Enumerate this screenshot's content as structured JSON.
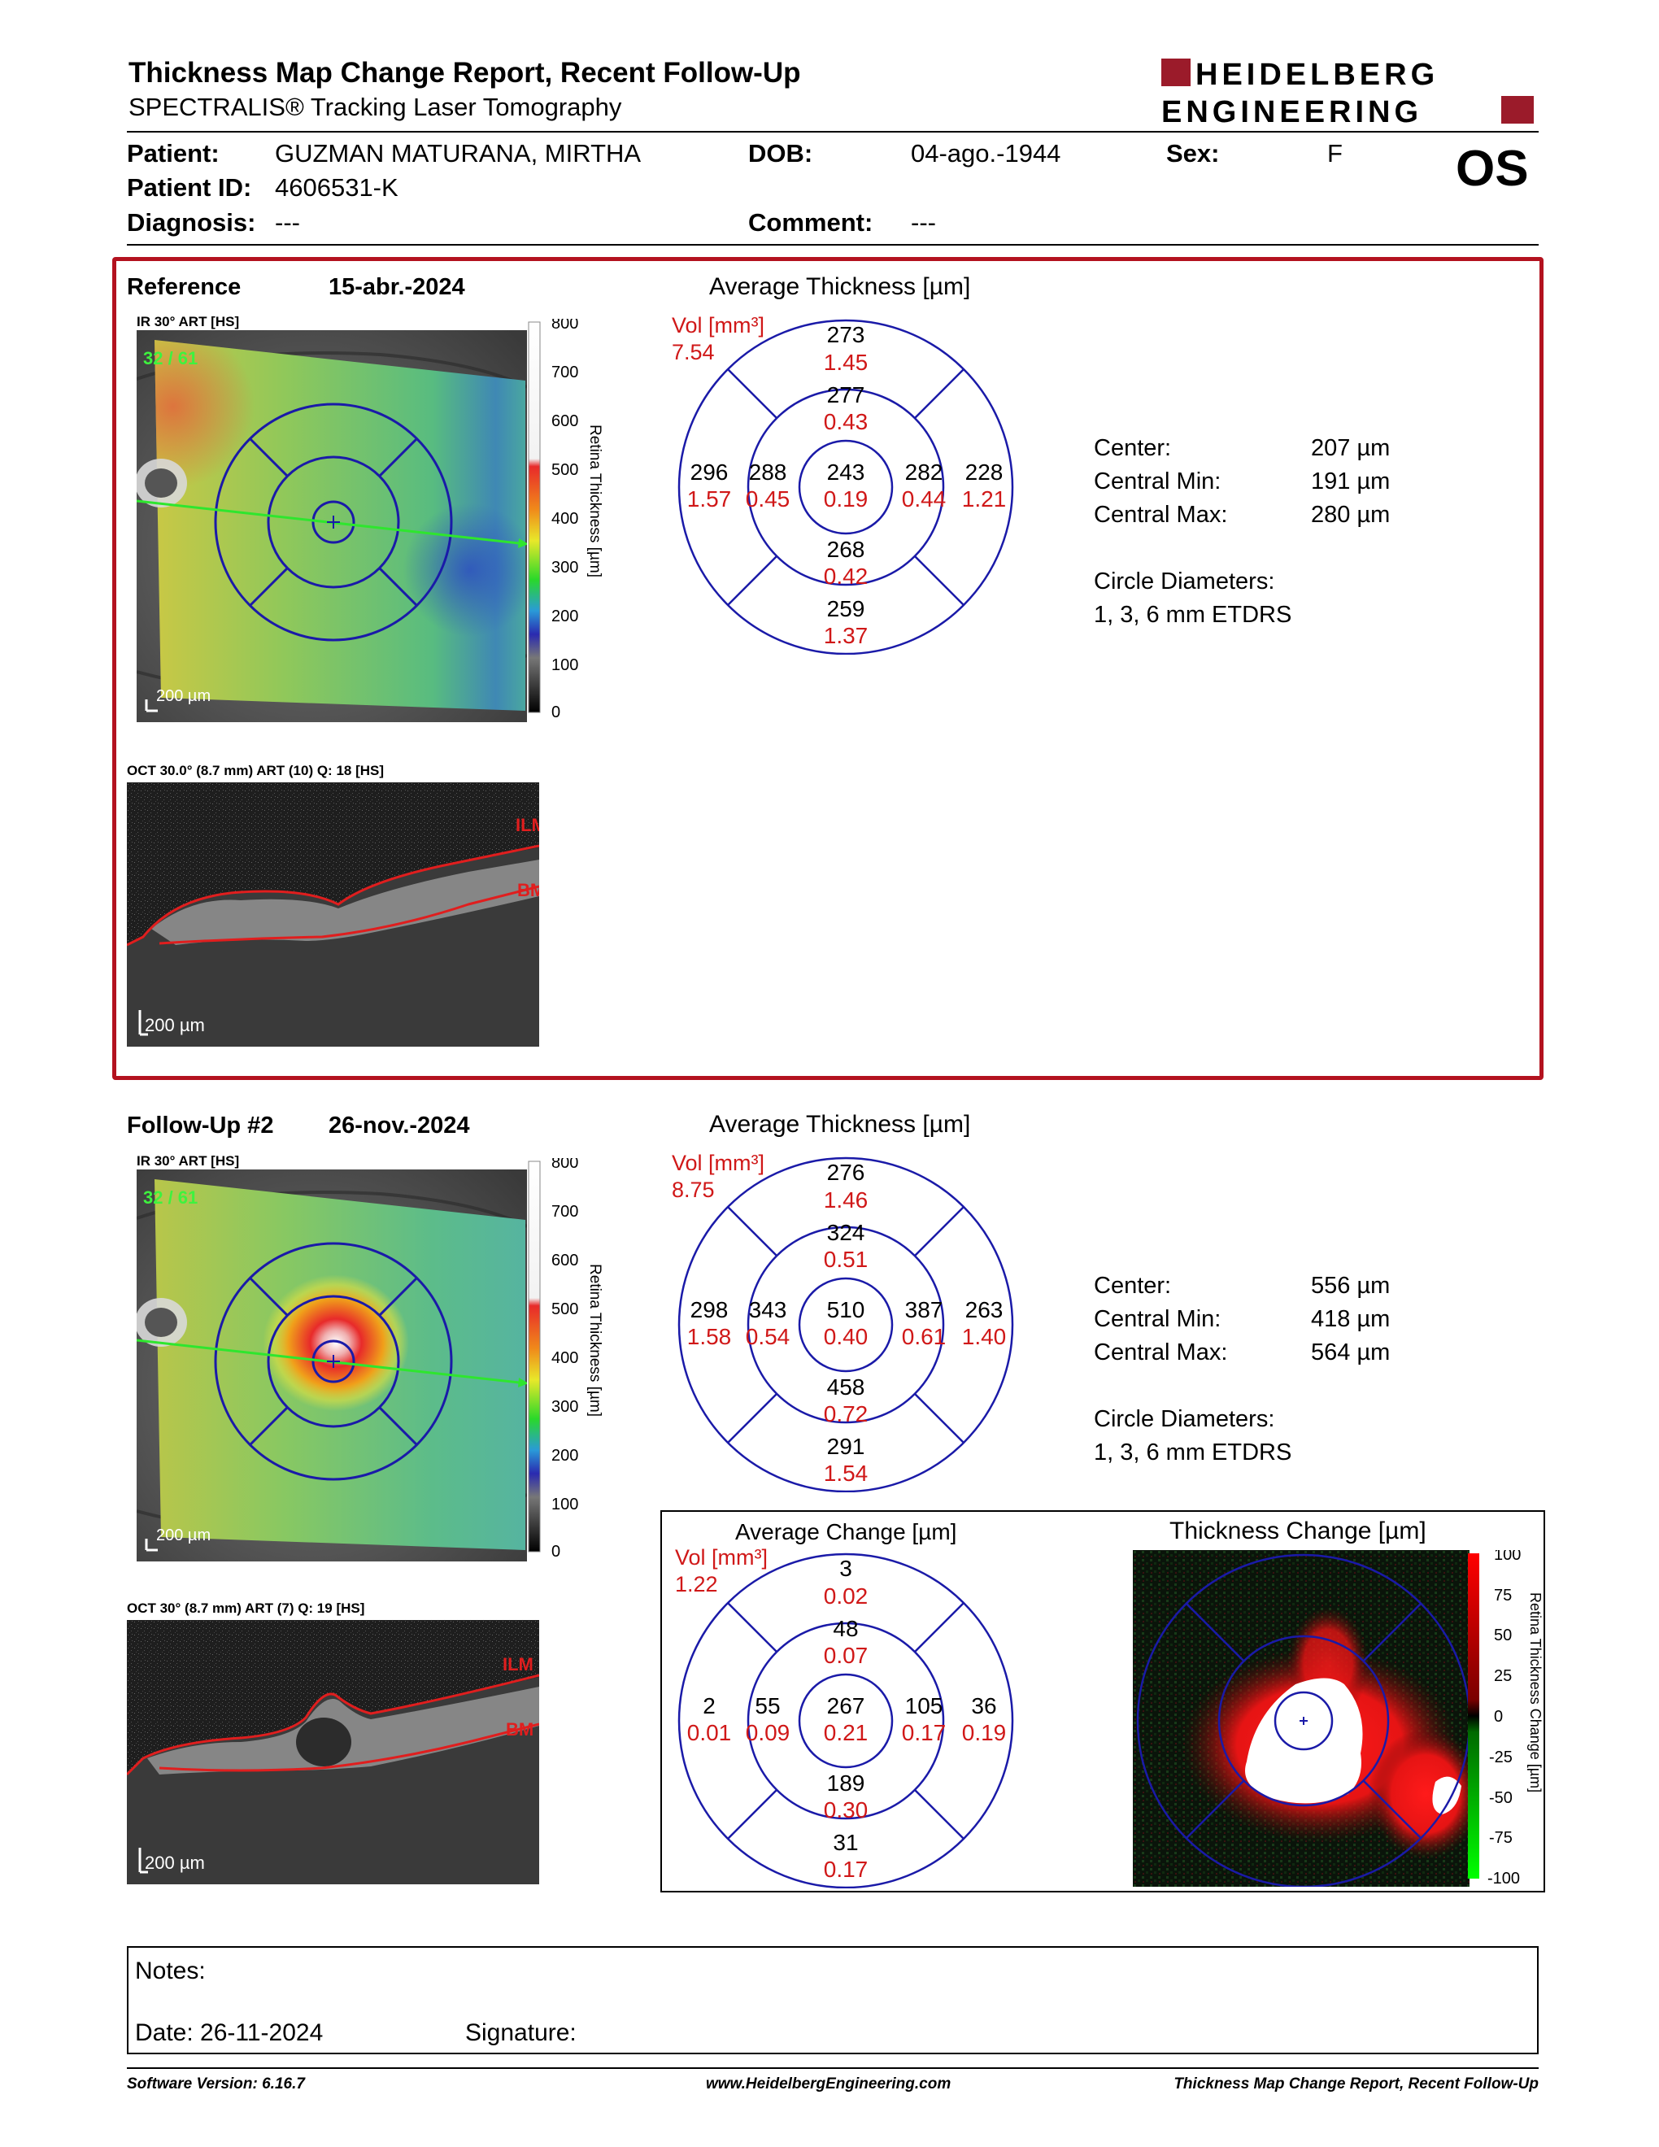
{
  "header": {
    "title": "Thickness Map Change Report, Recent Follow-Up",
    "subtitle": "SPECTRALIS® Tracking Laser Tomography",
    "logo_line1": "HEIDELBERG",
    "logo_line2": "ENGINEERING",
    "brand_color": "#9b1b2a"
  },
  "patient": {
    "patient_label": "Patient:",
    "patient_name": "GUZMAN MATURANA, MIRTHA",
    "id_label": "Patient ID:",
    "patient_id": "4606531-K",
    "diagnosis_label": "Diagnosis:",
    "diagnosis": "---",
    "dob_label": "DOB:",
    "dob": "04-ago.-1944",
    "comment_label": "Comment:",
    "comment": "---",
    "sex_label": "Sex:",
    "sex": "F",
    "eye": "OS"
  },
  "reference": {
    "label": "Reference",
    "date": "15-abr.-2024",
    "ir_caption": "IR 30° ART [HS]",
    "ir_counter": "32 / 61",
    "scale_bar": "200 µm",
    "colorbar_ticks": [
      "800",
      "700",
      "600",
      "500",
      "400",
      "300",
      "200",
      "100",
      "0"
    ],
    "colorbar_title": "Retina Thickness [µm]",
    "oct_caption": "OCT 30.0° (8.7 mm) ART (10) Q: 18 [HS]",
    "oct_ilm": "ILM",
    "oct_bm": "BM",
    "oct_scale": "200 µm",
    "etdrs": {
      "title": "Average Thickness [µm]",
      "vol_label": "Vol [mm³]",
      "vol_total": "7.54",
      "center": {
        "thk": "243",
        "vol": "0.19"
      },
      "inner_superior": {
        "thk": "277",
        "vol": "0.43"
      },
      "inner_temporal": {
        "thk": "288",
        "vol": "0.45"
      },
      "inner_nasal": {
        "thk": "282",
        "vol": "0.44"
      },
      "inner_inferior": {
        "thk": "268",
        "vol": "0.42"
      },
      "outer_superior": {
        "thk": "273",
        "vol": "1.45"
      },
      "outer_temporal": {
        "thk": "296",
        "vol": "1.57"
      },
      "outer_nasal": {
        "thk": "228",
        "vol": "1.21"
      },
      "outer_inferior": {
        "thk": "259",
        "vol": "1.37"
      }
    },
    "stats": {
      "center_label": "Center:",
      "center": "207 µm",
      "min_label": "Central Min:",
      "min": "191 µm",
      "max_label": "Central Max:",
      "max": "280 µm",
      "diam_label": "Circle Diameters:",
      "diam": "1, 3, 6 mm ETDRS"
    }
  },
  "followup": {
    "label": "Follow-Up #2",
    "date": "26-nov.-2024",
    "ir_caption": "IR 30° ART [HS]",
    "ir_counter": "32 / 61",
    "scale_bar": "200 µm",
    "colorbar_ticks": [
      "800",
      "700",
      "600",
      "500",
      "400",
      "300",
      "200",
      "100",
      "0"
    ],
    "colorbar_title": "Retina Thickness [µm]",
    "oct_caption": "OCT 30° (8.7 mm) ART (7) Q: 19 [HS]",
    "oct_ilm": "ILM",
    "oct_bm": "BM",
    "oct_scale": "200 µm",
    "etdrs": {
      "title": "Average Thickness [µm]",
      "vol_label": "Vol [mm³]",
      "vol_total": "8.75",
      "center": {
        "thk": "510",
        "vol": "0.40"
      },
      "inner_superior": {
        "thk": "324",
        "vol": "0.51"
      },
      "inner_temporal": {
        "thk": "343",
        "vol": "0.54"
      },
      "inner_nasal": {
        "thk": "387",
        "vol": "0.61"
      },
      "inner_inferior": {
        "thk": "458",
        "vol": "0.72"
      },
      "outer_superior": {
        "thk": "276",
        "vol": "1.46"
      },
      "outer_temporal": {
        "thk": "298",
        "vol": "1.58"
      },
      "outer_nasal": {
        "thk": "263",
        "vol": "1.40"
      },
      "outer_inferior": {
        "thk": "291",
        "vol": "1.54"
      }
    },
    "stats": {
      "center_label": "Center:",
      "center": "556 µm",
      "min_label": "Central Min:",
      "min": "418 µm",
      "max_label": "Central Max:",
      "max": "564 µm",
      "diam_label": "Circle Diameters:",
      "diam": "1, 3, 6 mm ETDRS"
    }
  },
  "change": {
    "etdrs": {
      "title": "Average Change [µm]",
      "vol_label": "Vol [mm³]",
      "vol_total": "1.22",
      "center": {
        "thk": "267",
        "vol": "0.21"
      },
      "inner_superior": {
        "thk": "48",
        "vol": "0.07"
      },
      "inner_temporal": {
        "thk": "55",
        "vol": "0.09"
      },
      "inner_nasal": {
        "thk": "105",
        "vol": "0.17"
      },
      "inner_inferior": {
        "thk": "189",
        "vol": "0.30"
      },
      "outer_superior": {
        "thk": "3",
        "vol": "0.02"
      },
      "outer_temporal": {
        "thk": "2",
        "vol": "0.01"
      },
      "outer_nasal": {
        "thk": "36",
        "vol": "0.19"
      },
      "outer_inferior": {
        "thk": "31",
        "vol": "0.17"
      }
    },
    "map_title": "Thickness Change [µm]",
    "colorbar_ticks": [
      "100",
      "75",
      "50",
      "25",
      "0",
      "-25",
      "-50",
      "-75",
      "-100"
    ],
    "colorbar_title": "Retina Thickness Change [µm]"
  },
  "notes": {
    "notes_label": "Notes:",
    "date_label": "Date: 26-11-2024",
    "signature_label": "Signature:"
  },
  "footer": {
    "software": "Software Version: 6.16.7",
    "website": "www.HeidelbergEngineering.com",
    "report": "Thickness Map Change Report, Recent Follow-Up"
  }
}
